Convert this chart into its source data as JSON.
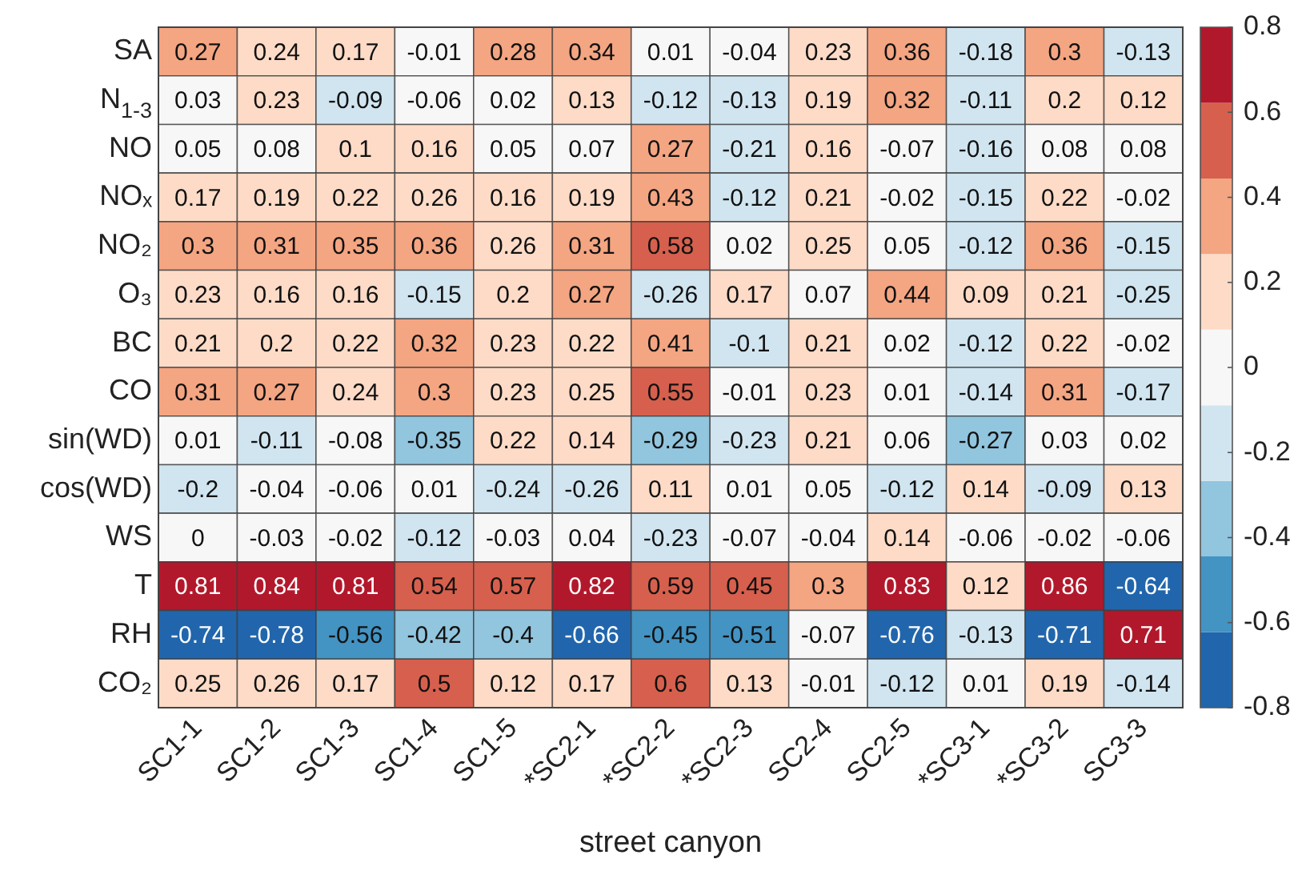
{
  "chart_data": {
    "type": "heatmap",
    "xlabel": "street canyon",
    "categories": [
      "SC1-1",
      "SC1-2",
      "SC1-3",
      "SC1-4",
      "SC1-5",
      "*SC2-1",
      "*SC2-2",
      "*SC2-3",
      "SC2-4",
      "SC2-5",
      "*SC3-1",
      "*SC3-2",
      "SC3-3"
    ],
    "y_categories": [
      "SA",
      "N$_{1-3}$",
      "NO",
      "NOₓ",
      "NO₂",
      "O₃",
      "BC",
      "CO",
      "sin(WD)",
      "cos(WD)",
      "WS",
      "T",
      "RH",
      "CO₂"
    ],
    "cells": [
      [
        0.27,
        0.24,
        0.17,
        -0.01,
        0.28,
        0.34,
        0.01,
        -0.04,
        0.23,
        0.36,
        -0.18,
        0.3,
        -0.13
      ],
      [
        0.03,
        0.23,
        -0.09,
        -0.06,
        0.02,
        0.13,
        -0.12,
        -0.13,
        0.19,
        0.32,
        -0.11,
        0.2,
        0.12
      ],
      [
        0.05,
        0.08,
        0.1,
        0.16,
        0.05,
        0.07,
        0.27,
        -0.21,
        0.16,
        -0.07,
        -0.16,
        0.08,
        0.08
      ],
      [
        0.17,
        0.19,
        0.22,
        0.26,
        0.16,
        0.19,
        0.43,
        -0.12,
        0.21,
        -0.02,
        -0.15,
        0.22,
        -0.02
      ],
      [
        0.3,
        0.31,
        0.35,
        0.36,
        0.26,
        0.31,
        0.58,
        0.02,
        0.25,
        0.05,
        -0.12,
        0.36,
        -0.15
      ],
      [
        0.23,
        0.16,
        0.16,
        -0.15,
        0.2,
        0.27,
        -0.26,
        0.17,
        0.07,
        0.44,
        0.09,
        0.21,
        -0.25
      ],
      [
        0.21,
        0.2,
        0.22,
        0.32,
        0.23,
        0.22,
        0.41,
        -0.1,
        0.21,
        0.02,
        -0.12,
        0.22,
        -0.02
      ],
      [
        0.31,
        0.27,
        0.24,
        0.3,
        0.23,
        0.25,
        0.55,
        -0.01,
        0.23,
        0.01,
        -0.14,
        0.31,
        -0.17
      ],
      [
        0.01,
        -0.11,
        -0.08,
        -0.35,
        0.22,
        0.14,
        -0.29,
        -0.23,
        0.21,
        0.06,
        -0.27,
        0.03,
        0.02
      ],
      [
        -0.2,
        -0.04,
        -0.06,
        0.01,
        -0.24,
        -0.26,
        0.11,
        0.01,
        0.05,
        -0.12,
        0.14,
        -0.09,
        0.13
      ],
      [
        0,
        -0.03,
        -0.02,
        -0.12,
        -0.03,
        0.04,
        -0.23,
        -0.07,
        -0.04,
        0.14,
        -0.06,
        -0.02,
        -0.06
      ],
      [
        0.81,
        0.84,
        0.81,
        0.54,
        0.57,
        0.82,
        0.59,
        0.45,
        0.3,
        0.83,
        0.12,
        0.86,
        -0.64
      ],
      [
        -0.74,
        -0.78,
        -0.56,
        -0.42,
        -0.4,
        -0.66,
        -0.45,
        -0.51,
        -0.07,
        -0.76,
        -0.13,
        -0.71,
        0.71
      ],
      [
        0.25,
        0.26,
        0.17,
        0.5,
        0.12,
        0.17,
        0.6,
        0.13,
        -0.01,
        -0.12,
        0.01,
        0.19,
        -0.14
      ]
    ],
    "colors": [
      "#2166ac",
      "#4393c3",
      "#92c5de",
      "#d1e5f0",
      "#f7f7f7",
      "#fddbc7",
      "#f4a582",
      "#d6604d",
      "#b2182b"
    ],
    "clim": [
      -0.8,
      0.8
    ],
    "cticks": [
      -0.8,
      -0.6,
      -0.4,
      -0.2,
      0,
      0.2,
      0.4,
      0.6,
      0.8
    ],
    "data_labels": true
  }
}
